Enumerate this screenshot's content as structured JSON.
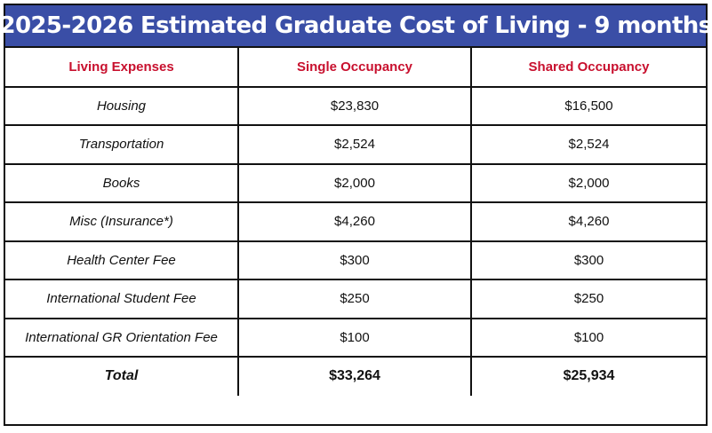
{
  "title": "2025-2026 Estimated Graduate Cost of Living - 9 months",
  "colors": {
    "banner": "#3a4ea6",
    "header_text": "#c8102e",
    "border": "#111111"
  },
  "table": {
    "headers": [
      "Living Expenses",
      "Single Occupancy",
      "Shared Occupancy"
    ],
    "rows": [
      {
        "label": "Housing",
        "single": "$23,830",
        "shared": "$16,500"
      },
      {
        "label": "Transportation",
        "single": "$2,524",
        "shared": "$2,524"
      },
      {
        "label": "Books",
        "single": "$2,000",
        "shared": "$2,000"
      },
      {
        "label": "Misc (Insurance*)",
        "single": "$4,260",
        "shared": "$4,260"
      },
      {
        "label": "Health Center Fee",
        "single": "$300",
        "shared": "$300"
      },
      {
        "label": "International Student Fee",
        "single": "$250",
        "shared": "$250"
      },
      {
        "label": "International GR Orientation Fee",
        "single": "$100",
        "shared": "$100"
      }
    ],
    "total": {
      "label": "Total",
      "single": "$33,264",
      "shared": "$25,934"
    }
  }
}
